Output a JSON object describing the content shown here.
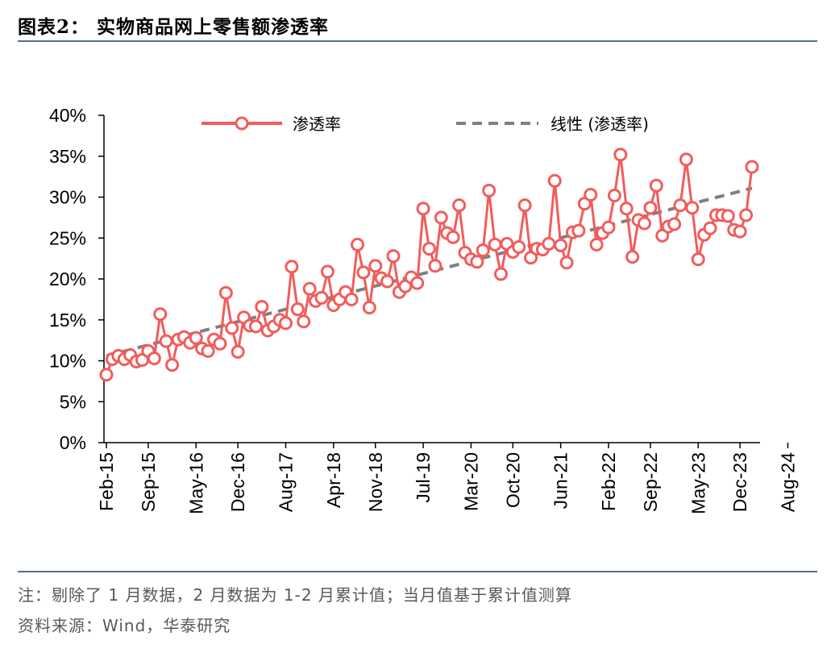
{
  "header": {
    "title": "图表2：  实物商品网上零售额渗透率"
  },
  "footer": {
    "note": "注：剔除了 1 月数据，2 月数据为 1-2 月累计值；当月值基于累计值测算",
    "source": "资料来源：Wind，华泰研究"
  },
  "colors": {
    "series": "#f25c5c",
    "trend": "#808080",
    "rule": "#5a6e82",
    "axis": "#000000"
  },
  "chart_data": {
    "type": "line",
    "title": "实物商品网上零售额渗透率",
    "xlabel": "",
    "ylabel": "",
    "ylim": [
      0,
      0.4
    ],
    "y_ticks": [
      "0%",
      "5%",
      "10%",
      "15%",
      "20%",
      "25%",
      "30%",
      "35%",
      "40%"
    ],
    "x_tick_labels": [
      "Feb-15",
      "Sep-15",
      "May-16",
      "Dec-16",
      "Aug-17",
      "Apr-18",
      "Nov-18",
      "Jul-19",
      "Mar-20",
      "Oct-20",
      "Jun-21",
      "Feb-22",
      "Sep-22",
      "May-23",
      "Dec-23",
      "Aug-24"
    ],
    "x_tick_indices": [
      0,
      7,
      15,
      22,
      30,
      38,
      45,
      53,
      61,
      68,
      76,
      84,
      91,
      99,
      106,
      114
    ],
    "legend": [
      "渗透率",
      "线性 (渗透率)"
    ],
    "legend_position": "top",
    "series": [
      {
        "name": "渗透率",
        "start": "Feb-15",
        "values": [
          0.083,
          0.102,
          0.106,
          0.102,
          0.107,
          0.099,
          0.101,
          0.112,
          0.103,
          0.157,
          0.124,
          0.095,
          0.126,
          0.129,
          0.122,
          0.128,
          0.115,
          0.112,
          0.126,
          0.121,
          0.183,
          0.14,
          0.111,
          0.153,
          0.143,
          0.142,
          0.166,
          0.137,
          0.142,
          0.15,
          0.146,
          0.215,
          0.163,
          0.148,
          0.188,
          0.173,
          0.177,
          0.209,
          0.168,
          0.175,
          0.184,
          0.175,
          0.242,
          0.208,
          0.165,
          0.216,
          0.201,
          0.197,
          0.228,
          0.184,
          0.191,
          0.202,
          0.195,
          0.286,
          0.237,
          0.216,
          0.275,
          0.256,
          0.251,
          0.29,
          0.232,
          0.224,
          0.221,
          0.235,
          0.308,
          0.242,
          0.206,
          0.243,
          0.233,
          0.239,
          0.29,
          0.226,
          0.237,
          0.236,
          0.243,
          0.32,
          0.241,
          0.22,
          0.257,
          0.259,
          0.292,
          0.303,
          0.242,
          0.256,
          0.263,
          0.302,
          0.352,
          0.286,
          0.227,
          0.272,
          0.268,
          0.287,
          0.314,
          0.253,
          0.264,
          0.267,
          0.29,
          0.346,
          0.287,
          0.224,
          0.254,
          0.262,
          0.278,
          0.278,
          0.277,
          0.26,
          0.258,
          0.278,
          0.337
        ]
      },
      {
        "name": "线性 (渗透率)",
        "kind": "linear trend",
        "from": 0.106,
        "to": 0.311
      }
    ]
  }
}
